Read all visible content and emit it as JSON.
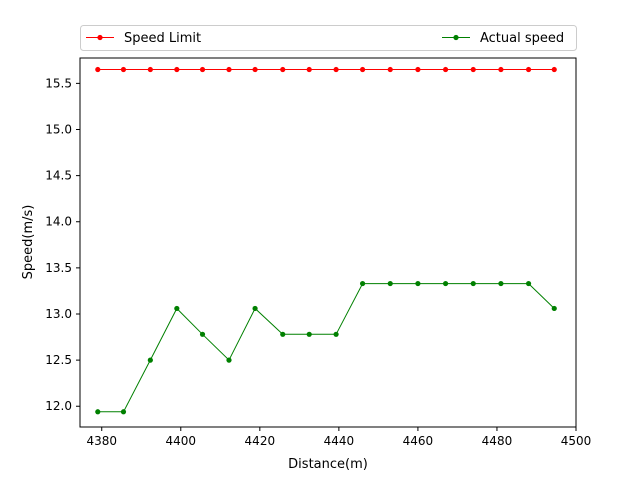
{
  "chart_data": {
    "type": "line",
    "xlabel": "Distance(m)",
    "ylabel": "Speed(m/s)",
    "xlim": [
      4374.5,
      4500
    ],
    "ylim": [
      11.775,
      15.775
    ],
    "x_ticks": [
      4380,
      4400,
      4420,
      4440,
      4460,
      4480,
      4500
    ],
    "y_ticks": [
      12.0,
      12.5,
      13.0,
      13.5,
      14.0,
      14.5,
      15.0,
      15.5
    ],
    "x_tick_labels": [
      "4380",
      "4400",
      "4420",
      "4440",
      "4460",
      "4480",
      "4500"
    ],
    "y_tick_labels": [
      "12.0",
      "12.5",
      "13.0",
      "13.5",
      "14.0",
      "14.5",
      "15.0",
      "15.5"
    ],
    "grid": false,
    "legend_position": "top, above plot",
    "series": [
      {
        "name": "Speed Limit",
        "color": "#ff0000",
        "x": [
          4379,
          4385.5,
          4392.3,
          4399,
          4405.5,
          4412.2,
          4418.8,
          4425.8,
          4432.5,
          4439.3,
          4446,
          4453,
          4460,
          4467,
          4474,
          4481,
          4488,
          4494.5
        ],
        "y": [
          15.65,
          15.65,
          15.65,
          15.65,
          15.65,
          15.65,
          15.65,
          15.65,
          15.65,
          15.65,
          15.65,
          15.65,
          15.65,
          15.65,
          15.65,
          15.65,
          15.65,
          15.65
        ]
      },
      {
        "name": "Actual speed",
        "color": "#008000",
        "x": [
          4379,
          4385.5,
          4392.3,
          4399,
          4405.5,
          4412.2,
          4418.8,
          4425.8,
          4432.5,
          4439.3,
          4446,
          4453,
          4460,
          4467,
          4474,
          4481,
          4488,
          4494.5
        ],
        "y": [
          11.94,
          11.94,
          12.5,
          13.06,
          12.78,
          12.5,
          13.06,
          12.78,
          12.78,
          12.78,
          13.33,
          13.33,
          13.33,
          13.33,
          13.33,
          13.33,
          13.33,
          13.06
        ]
      }
    ]
  }
}
